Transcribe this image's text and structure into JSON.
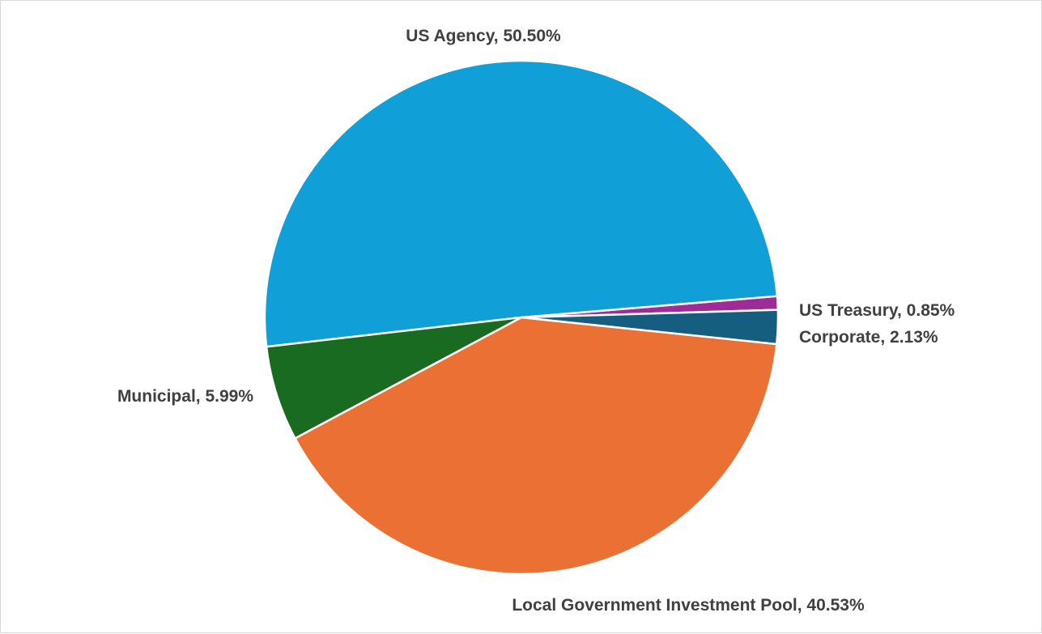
{
  "chart_data": {
    "type": "pie",
    "title": "",
    "legend": "none",
    "categories": [
      "US Treasury",
      "US Agency",
      "Municipal",
      "Local Government Investment Pool",
      "Corporate"
    ],
    "values": [
      0.85,
      50.5,
      5.99,
      40.53,
      2.13
    ],
    "colors": [
      "#9C2D96",
      "#109FD7",
      "#1A6B22",
      "#EA7133",
      "#155E80"
    ],
    "labels": [
      "US Treasury, 0.85%",
      "US Agency, 50.50%",
      "Municipal, 5.99%",
      "Local Government Investment Pool, 40.53%",
      "Corporate, 2.13%"
    ]
  }
}
